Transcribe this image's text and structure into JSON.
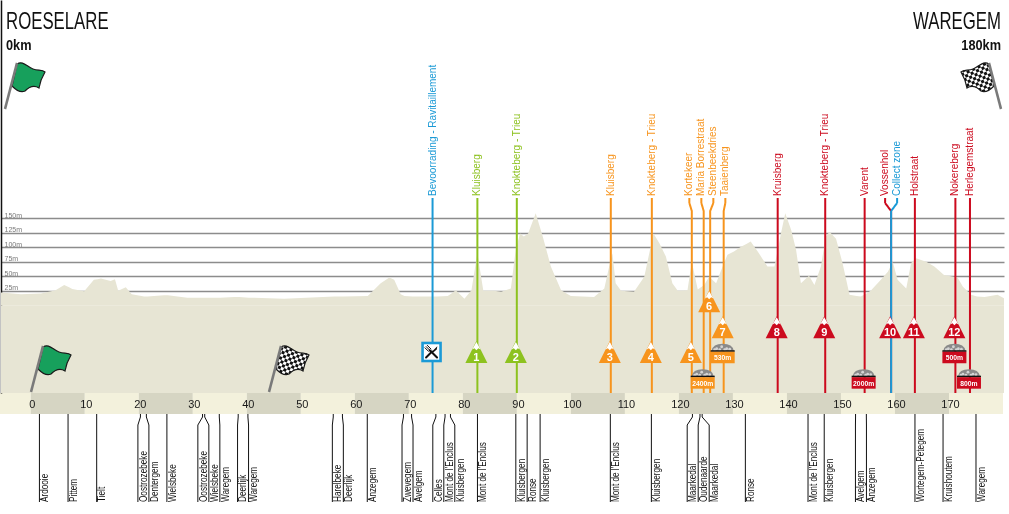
{
  "chart_data": {
    "type": "area",
    "x": [
      -5.7,
      -2.0,
      1.7,
      4.4,
      6.0,
      6.9,
      7.5,
      9.7,
      11.5,
      12.2,
      12.8,
      14.6,
      15.4,
      16.0,
      17.4,
      18.5,
      20.8,
      21.4,
      24.5,
      25.2,
      28.8,
      31.8,
      32.2,
      34.9,
      37.5,
      38.4,
      40.2,
      46.7,
      56.0,
      57.7,
      62.2,
      64.6,
      66.2,
      67.1,
      68.3,
      69.0,
      70.5,
      73.3,
      75.0,
      77.0,
      77.7,
      78.5,
      80.1,
      81.4,
      82.5,
      83.6,
      85.6,
      86.9,
      88.7,
      89.6,
      90.4,
      91.1,
      91.9,
      93.3,
      94.6,
      96.1,
      98.0,
      99.8,
      104.1,
      106.0,
      106.9,
      107.5,
      108.1,
      109.1,
      111.5,
      113.4,
      115.1,
      116.2,
      117.4,
      118.6,
      119.6,
      121.4,
      122.2,
      123.3,
      123.9,
      124.5,
      125.4,
      126.7,
      127.9,
      128.8,
      130.0,
      131.3,
      132.3,
      133.1,
      134.4,
      136.2,
      137.5,
      138.7,
      139.5,
      140.6,
      141.5,
      142.4,
      143.1,
      143.9,
      144.9,
      146.1,
      147.0,
      147.7,
      148.9,
      150.1,
      151.4,
      152.7,
      153.5,
      154.7,
      155.4,
      157.2,
      158.5,
      159.4,
      160.3,
      161.9,
      162.8,
      163.7,
      165.6,
      167.1,
      168.9,
      171.4,
      172.4,
      173.9,
      175.0,
      176.4,
      178.8,
      180
    ],
    "series": [
      {
        "color": "#e7e5d4",
        "values": [
          22,
          19,
          20,
          26,
          35,
          31,
          28,
          24,
          44,
          45,
          46,
          42,
          45,
          25,
          31,
          19,
          15,
          15,
          17,
          17,
          13,
          13,
          13,
          13,
          14,
          14,
          13,
          11,
          15,
          15,
          16,
          38,
          48,
          44,
          19,
          16,
          15,
          15,
          15,
          16,
          20,
          26,
          11,
          26,
          90,
          25,
          25,
          23,
          29,
          96,
          124,
          119,
          124,
          159,
          119,
          67,
          26,
          16,
          14,
          29,
          67,
          90,
          38,
          25,
          23,
          49,
          124,
          107,
          84,
          38,
          25,
          26,
          75,
          27,
          31,
          35,
          49,
          38,
          67,
          87,
          93,
          101,
          106,
          110,
          93,
          67,
          67,
          124,
          159,
          130,
          96,
          38,
          44,
          51,
          35,
          67,
          119,
          127,
          115,
          73,
          18,
          16,
          15,
          21,
          26,
          44,
          58,
          75,
          44,
          29,
          73,
          81,
          75,
          67,
          52,
          48,
          32,
          18,
          15,
          14,
          18,
          12
        ]
      }
    ],
    "xlim": [
      -5.7,
      180
    ],
    "xticks": [
      0,
      10,
      20,
      30,
      40,
      50,
      60,
      70,
      80,
      90,
      100,
      110,
      120,
      130,
      140,
      150,
      160,
      170
    ],
    "ylim": [
      -152,
      528
    ],
    "yticks": [
      {
        "value": 25,
        "label": "25m"
      },
      {
        "value": 50,
        "label": "50m"
      },
      {
        "value": 75,
        "label": "75m"
      },
      {
        "value": 100,
        "label": "100m"
      },
      {
        "value": 125,
        "label": "125m"
      },
      {
        "value": 150,
        "label": "150m"
      }
    ],
    "grid": "y",
    "bands": [
      {
        "axis": "y",
        "from": -152,
        "to": 0,
        "color": "#e7e5d4"
      }
    ],
    "ref_lines": [
      {
        "axis": "x",
        "value": 74.2,
        "label": "Bevoorrading - Ravitaillement",
        "color": "#1b9ad6"
      },
      {
        "axis": "x",
        "value": 82.5,
        "label": "Kluisberg",
        "color": "#8dc21f"
      },
      {
        "axis": "x",
        "value": 89.8,
        "label": "Knokteberg - Trieu",
        "color": "#8dc21f"
      },
      {
        "axis": "x",
        "value": 107.2,
        "label": "Kluisberg",
        "color": "#f7941d"
      },
      {
        "axis": "x",
        "value": 114.8,
        "label": "Knokteberg - Trieu",
        "color": "#f7941d"
      },
      {
        "axis": "x",
        "value": 122.2,
        "label": "Kortekeer",
        "color": "#f7941d"
      },
      {
        "axis": "x",
        "value": 124.4,
        "label": "Maria Borrestraat",
        "color": "#f7941d"
      },
      {
        "axis": "x",
        "value": 125.6,
        "label": "Steenbeekdries",
        "color": "#f7941d"
      },
      {
        "axis": "x",
        "value": 128.1,
        "label": "Taaienberg",
        "color": "#f7941d"
      },
      {
        "axis": "x",
        "value": 138.1,
        "label": "Kruisberg",
        "color": "#cc0a1e"
      },
      {
        "axis": "x",
        "value": 146.9,
        "label": "Knokteberg - Trieu",
        "color": "#cc0a1e"
      },
      {
        "axis": "x",
        "value": 154.2,
        "label": "Varent",
        "color": "#cc0a1e"
      },
      {
        "axis": "x",
        "value": 159.1,
        "label": "Vossenhol",
        "color": "#cc0a1e"
      },
      {
        "axis": "x",
        "value": 159.1,
        "label": "Collect zone",
        "color": "#1b9ad6"
      },
      {
        "axis": "x",
        "value": 163.5,
        "label": "Holstraat",
        "color": "#cc0a1e"
      },
      {
        "axis": "x",
        "value": 171.0,
        "label": "Nokereberg",
        "color": "#cc0a1e"
      },
      {
        "axis": "x",
        "value": 173.7,
        "label": "Herlegemstraat",
        "color": "#cc0a1e"
      }
    ],
    "annotations": [
      "ROESELARE",
      "0km",
      "WAREGEM",
      "180km",
      {
        "text": "1",
        "x": 82.5,
        "y": -88
      },
      {
        "text": "2",
        "x": 89.8,
        "y": -88
      },
      {
        "text": "3",
        "x": 107.2,
        "y": -88
      },
      {
        "text": "4",
        "x": 114.8,
        "y": -88
      },
      {
        "text": "5",
        "x": 122.2,
        "y": -88
      },
      {
        "text": "6",
        "x": 125.6,
        "y": 0
      },
      {
        "text": "7",
        "x": 128.1,
        "y": -45
      },
      {
        "text": "8",
        "x": 138.1,
        "y": -45
      },
      {
        "text": "9",
        "x": 146.9,
        "y": -45
      },
      {
        "text": "10",
        "x": 159.1,
        "y": -45
      },
      {
        "text": "11",
        "x": 163.5,
        "y": -45
      },
      {
        "text": "12",
        "x": 171.0,
        "y": -45
      },
      {
        "text": "2400m",
        "x": 124.4,
        "y": -135
      },
      {
        "text": "530m",
        "x": 128.1,
        "y": -91
      },
      {
        "text": "2000m",
        "x": 154.2,
        "y": -135
      },
      {
        "text": "500m",
        "x": 171.0,
        "y": -91
      },
      {
        "text": "800m",
        "x": 173.7,
        "y": -135
      },
      {
        "text": "Ardooie",
        "x": 1.6
      },
      {
        "text": "Pittem",
        "x": 6.9
      },
      {
        "text": "Tielt",
        "x": 12.2
      },
      {
        "text": "Oostrozebeke",
        "x": 20.3
      },
      {
        "text": "Dentergem",
        "x": 21.4
      },
      {
        "text": "Wielsbeke",
        "x": 25.2
      },
      {
        "text": "Oostrozebeke",
        "x": 31.8
      },
      {
        "text": "Wielsbeke",
        "x": 32.2
      },
      {
        "text": "Waregem",
        "x": 34.9
      },
      {
        "text": "Deerlijk",
        "x": 38.4
      },
      {
        "text": "Waregem",
        "x": 40.2
      },
      {
        "text": "Harelbeke",
        "x": 56.0
      },
      {
        "text": "Deerlijk",
        "x": 57.7
      },
      {
        "text": "Anzegem",
        "x": 62.3
      },
      {
        "text": "Zwevegem",
        "x": 69.0
      },
      {
        "text": "Avelgem",
        "x": 70.5
      },
      {
        "text": "Celles",
        "x": 75.0
      },
      {
        "text": "Mont de l'Enclus",
        "x": 76.7
      },
      {
        "text": "Kluisbergen",
        "x": 77.7
      },
      {
        "text": "Mont de l'Enclus",
        "x": 82.7
      },
      {
        "text": "Kluisbergen",
        "x": 89.8
      },
      {
        "text": "Ronse",
        "x": 91.9
      },
      {
        "text": "Kluisbergen",
        "x": 94.3
      },
      {
        "text": "Mont de l'Enclus",
        "x": 107.3
      },
      {
        "text": "Kluisbergen",
        "x": 114.9
      },
      {
        "text": "Maarkedal",
        "x": 122.5
      },
      {
        "text": "Oudenaarde",
        "x": 123.9
      },
      {
        "text": "Maarkedal",
        "x": 124.3
      },
      {
        "text": "Ronse",
        "x": 132.3
      },
      {
        "text": "Mont de l'Enclus",
        "x": 143.9
      },
      {
        "text": "Kluisbergen",
        "x": 146.9
      },
      {
        "text": "Avelgem",
        "x": 152.7
      },
      {
        "text": "Anzegem",
        "x": 154.7
      },
      {
        "text": "Wortegem-Petegem",
        "x": 163.7
      },
      {
        "text": "Kruishoutem",
        "x": 168.9
      },
      {
        "text": "Waregem",
        "x": 175.0
      }
    ]
  }
}
